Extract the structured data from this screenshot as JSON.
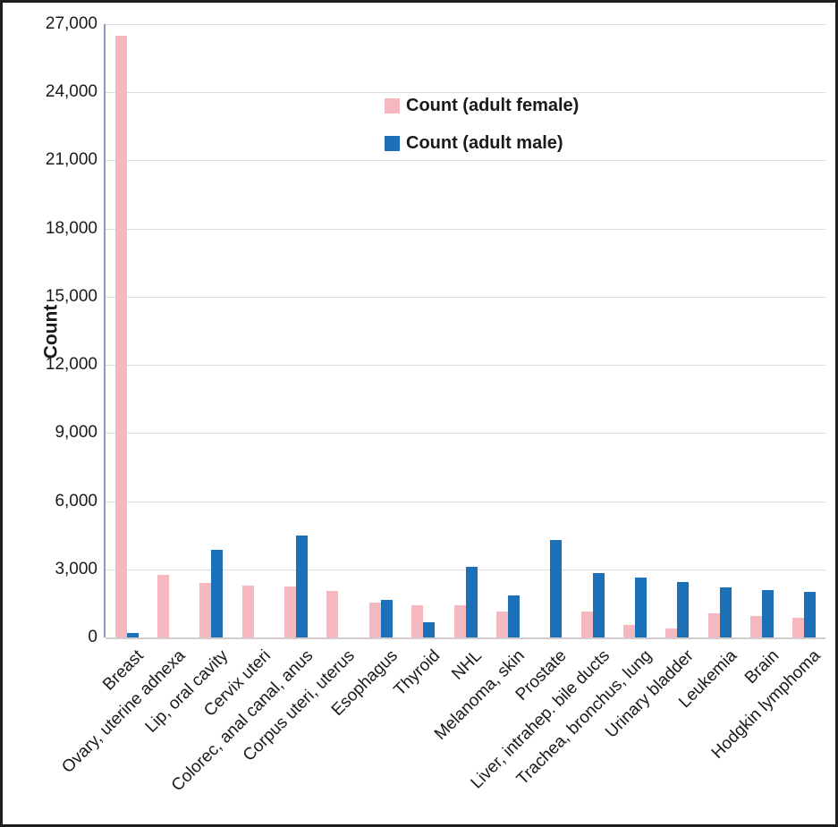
{
  "chart_data": {
    "type": "bar",
    "title": "",
    "xlabel": "",
    "ylabel": "Count",
    "ylim": [
      0,
      27000
    ],
    "ytick_interval": 3000,
    "ytick_labels": [
      "0",
      "3,000",
      "6,000",
      "9,000",
      "12,000",
      "15,000",
      "18,000",
      "21,000",
      "24,000",
      "27,000"
    ],
    "grid": true,
    "legend_position": "upper-center-inside",
    "categories": [
      "Breast",
      "Ovary, uterine adnexa",
      "Lip, oral cavity",
      "Cervix uteri",
      "Colorec, anal canal, anus",
      "Corpus uteri, uterus",
      "Esophagus",
      "Thyroid",
      "NHL",
      "Melanoma, skin",
      "Prostate",
      "Liver, intrahep. bile ducts",
      "Trachea, bronchus, lung",
      "Urinary bladder",
      "Leukemia",
      "Brain",
      "Hodgkin lymphoma"
    ],
    "series": [
      {
        "name": "Count (adult female)",
        "color": "#F5B8BF",
        "values": [
          26500,
          2750,
          2400,
          2300,
          2250,
          2050,
          1550,
          1400,
          1400,
          1150,
          0,
          1150,
          550,
          400,
          1050,
          950,
          850
        ]
      },
      {
        "name": "Count (adult male)",
        "color": "#1B70B8",
        "values": [
          200,
          0,
          3850,
          0,
          4500,
          0,
          1650,
          650,
          3100,
          1850,
          4300,
          2850,
          2650,
          2450,
          2200,
          2100,
          2000
        ]
      }
    ]
  },
  "colors": {
    "gridline": "#DCDCDC",
    "y_axis_line": "#8A9BBE",
    "x_axis_line": "#D5CDCD",
    "text": "#1A1A1A",
    "frame_border": "#1E1E1E",
    "background": "#FFFFFF"
  }
}
